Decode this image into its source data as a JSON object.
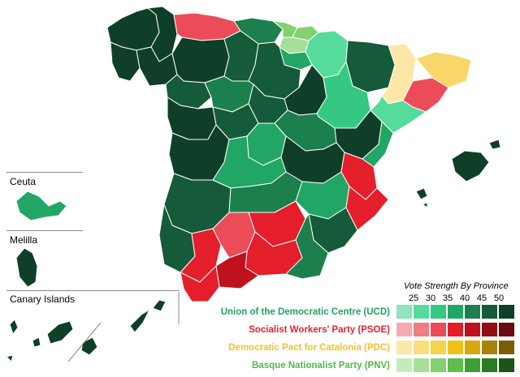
{
  "insets": {
    "ceuta": "Ceuta",
    "melilla": "Melilla",
    "canary": "Canary Islands"
  },
  "legend": {
    "title": "Vote Strength By Province",
    "scale": [
      "25",
      "30",
      "35",
      "40",
      "45",
      "50"
    ],
    "parties": [
      {
        "name": "Union of the Democratic Centre (UCD)",
        "color": "#1fa35f",
        "swatches": [
          "#8fe3bd",
          "#55dc9d",
          "#35c882",
          "#22a665",
          "#1b7f4e",
          "#155a39",
          "#0f3f29"
        ]
      },
      {
        "name": "Socialist Workers' Party (PSOE)",
        "color": "#e0242f",
        "swatches": [
          "#f7aab0",
          "#f27c85",
          "#ec4c57",
          "#e51e2c",
          "#c0121d",
          "#940c15",
          "#6a0a10"
        ]
      },
      {
        "name": "Democratic Pact for Catalonia (PDC)",
        "color": "#f2c12e",
        "swatches": [
          "#fbe9a8",
          "#fadf7f",
          "#f7d24b",
          "#f0c219",
          "#d7a80d",
          "#a98308",
          "#7a5e06"
        ]
      },
      {
        "name": "Basque Nationalist Party (PNV)",
        "color": "#55b84a",
        "swatches": [
          "#c6ebbb",
          "#a6df98",
          "#82d06f",
          "#5ebd4b",
          "#3f9e32",
          "#2b7b22",
          "#1c5516"
        ]
      }
    ]
  },
  "palette": {
    "ucd_darkest": "#0f3f29",
    "ucd_dark": "#155a39",
    "ucd_mid": "#1b7f4e",
    "ucd_light": "#22a665",
    "ucd_lighter": "#35c882",
    "ucd_pale": "#55dc9d",
    "psoe_mid": "#e51e2c",
    "psoe_light": "#ec4c57",
    "psoe_dark": "#c0121d",
    "pdc_pale": "#fde7a6",
    "pdc_light": "#f9d669",
    "pnv_light": "#82d06f",
    "pnv_pale": "#a6df98"
  }
}
